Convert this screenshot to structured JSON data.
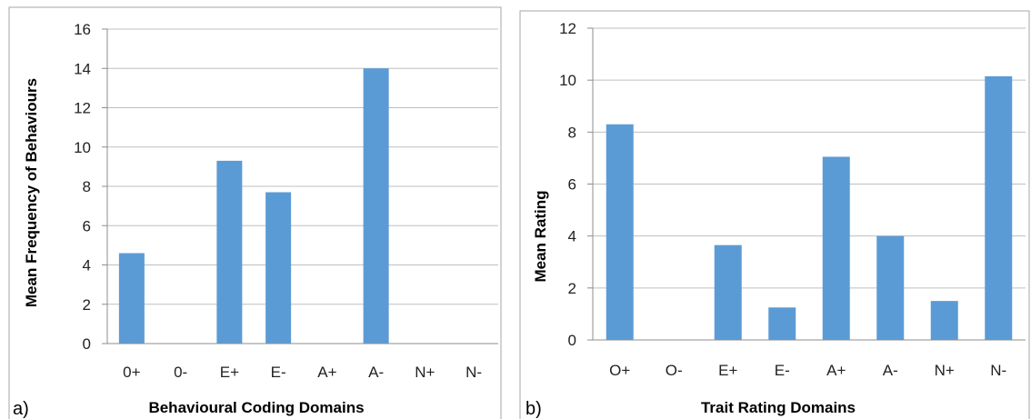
{
  "chart_data": [
    {
      "type": "bar",
      "panel_label": "a)",
      "categories": [
        "0+",
        "0-",
        "E+",
        "E-",
        "A+",
        "A-",
        "N+",
        "N-"
      ],
      "values": [
        4.6,
        0,
        9.3,
        7.7,
        0,
        14.0,
        0,
        0
      ],
      "xlabel": "Behavioural Coding Domains",
      "ylabel": "Mean Frequency of Behaviours",
      "ylim": [
        0,
        16
      ],
      "yticks": [
        "0",
        "2",
        "4",
        "6",
        "8",
        "10",
        "12",
        "14",
        "16"
      ],
      "grid": true,
      "bar_color": "#5b9bd5"
    },
    {
      "type": "bar",
      "panel_label": "b)",
      "categories": [
        "O+",
        "O-",
        "E+",
        "E-",
        "A+",
        "A-",
        "N+",
        "N-"
      ],
      "values": [
        8.3,
        0,
        3.65,
        1.25,
        7.05,
        4.0,
        1.5,
        10.15
      ],
      "xlabel": "Trait Rating Domains",
      "ylabel": "Mean Rating",
      "ylim": [
        0,
        12
      ],
      "yticks": [
        "0",
        "2",
        "4",
        "6",
        "8",
        "10",
        "12"
      ],
      "grid": true,
      "bar_color": "#5b9bd5"
    }
  ]
}
